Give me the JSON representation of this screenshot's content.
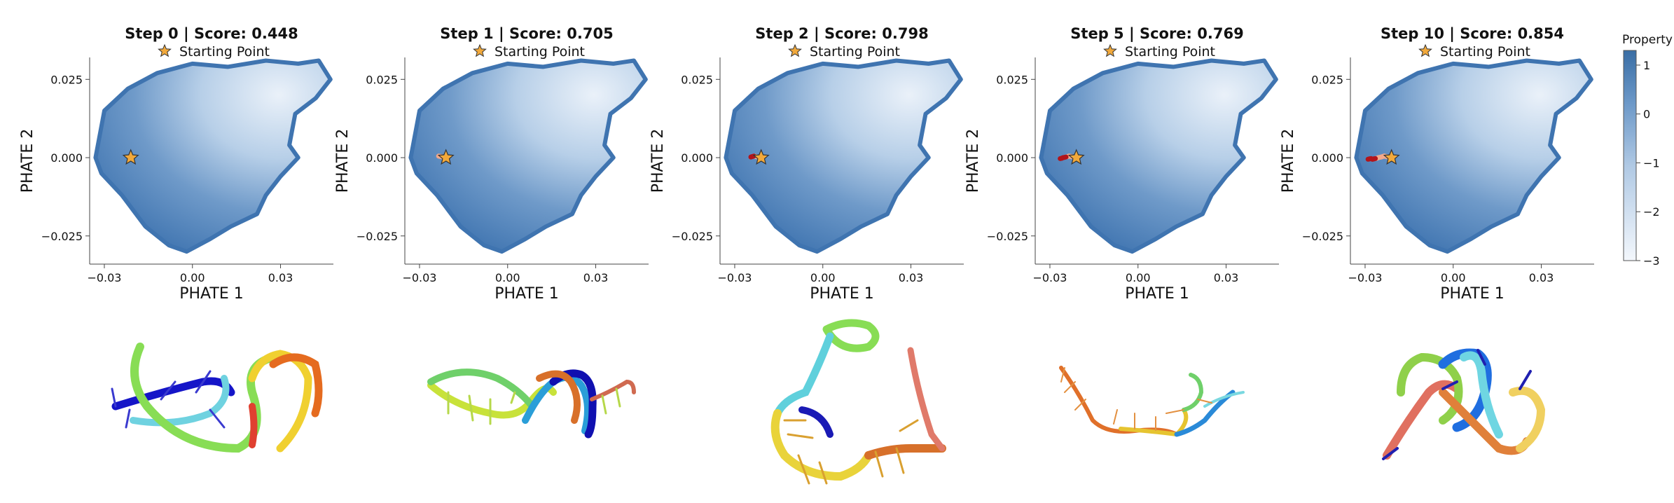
{
  "chart_data": [
    {
      "type": "scatter",
      "step": 0,
      "title": "Step 0 | Score: 0.448",
      "legend": "Starting Point",
      "xlabel": "PHATE 1",
      "ylabel": "PHATE 2",
      "xticks": [
        -0.03,
        0.0,
        0.03
      ],
      "xtick_labels": [
        "−0.03",
        "0.00",
        "0.03"
      ],
      "yticks": [
        0.025,
        0.0,
        -0.025
      ],
      "ytick_labels": [
        "0.025",
        "0.000",
        "−0.025"
      ],
      "xlim": [
        -0.035,
        0.048
      ],
      "ylim": [
        -0.034,
        0.032
      ],
      "start_point": [
        -0.021,
        0.0
      ],
      "trajectory": [
        [
          -0.021,
          0.0
        ]
      ]
    },
    {
      "type": "scatter",
      "step": 1,
      "title": "Step 1 | Score: 0.705",
      "legend": "Starting Point",
      "xlabel": "PHATE 1",
      "ylabel": "PHATE 2",
      "xticks": [
        -0.03,
        0.0,
        0.03
      ],
      "xtick_labels": [
        "−0.03",
        "0.00",
        "0.03"
      ],
      "yticks": [
        0.025,
        0.0,
        -0.025
      ],
      "ytick_labels": [
        "0.025",
        "0.000",
        "−0.025"
      ],
      "xlim": [
        -0.035,
        0.048
      ],
      "ylim": [
        -0.034,
        0.032
      ],
      "start_point": [
        -0.021,
        0.0
      ],
      "trajectory": [
        [
          -0.021,
          0.0
        ],
        [
          -0.0235,
          0.0005
        ]
      ]
    },
    {
      "type": "scatter",
      "step": 2,
      "title": "Step 2 | Score: 0.798",
      "legend": "Starting Point",
      "xlabel": "PHATE 1",
      "ylabel": "PHATE 2",
      "xticks": [
        -0.03,
        0.0,
        0.03
      ],
      "xtick_labels": [
        "−0.03",
        "0.00",
        "0.03"
      ],
      "yticks": [
        0.025,
        0.0,
        -0.025
      ],
      "ytick_labels": [
        "0.025",
        "0.000",
        "−0.025"
      ],
      "xlim": [
        -0.035,
        0.048
      ],
      "ylim": [
        -0.034,
        0.032
      ],
      "start_point": [
        -0.021,
        0.0
      ],
      "trajectory": [
        [
          -0.021,
          0.0
        ],
        [
          -0.0235,
          0.0005
        ],
        [
          -0.0245,
          0.0002
        ]
      ]
    },
    {
      "type": "scatter",
      "step": 5,
      "title": "Step 5 | Score: 0.769",
      "legend": "Starting Point",
      "xlabel": "PHATE 1",
      "ylabel": "PHATE 2",
      "xticks": [
        -0.03,
        0.0,
        0.03
      ],
      "xtick_labels": [
        "−0.03",
        "0.00",
        "0.03"
      ],
      "yticks": [
        0.025,
        0.0,
        -0.025
      ],
      "ytick_labels": [
        "0.025",
        "0.000",
        "−0.025"
      ],
      "xlim": [
        -0.035,
        0.048
      ],
      "ylim": [
        -0.034,
        0.032
      ],
      "start_point": [
        -0.021,
        0.0
      ],
      "trajectory": [
        [
          -0.021,
          0.0
        ],
        [
          -0.0235,
          0.0005
        ],
        [
          -0.0245,
          0.0002
        ],
        [
          -0.0255,
          0.0
        ],
        [
          -0.026,
          -0.0002
        ],
        [
          -0.0265,
          -0.0003
        ]
      ]
    },
    {
      "type": "scatter",
      "step": 10,
      "title": "Step 10 | Score: 0.854",
      "legend": "Starting Point",
      "xlabel": "PHATE 1",
      "ylabel": "PHATE 2",
      "xticks": [
        -0.03,
        0.0,
        0.03
      ],
      "xtick_labels": [
        "−0.03",
        "0.00",
        "0.03"
      ],
      "yticks": [
        0.025,
        0.0,
        -0.025
      ],
      "ytick_labels": [
        "0.025",
        "0.000",
        "−0.025"
      ],
      "xlim": [
        -0.035,
        0.048
      ],
      "ylim": [
        -0.034,
        0.032
      ],
      "start_point": [
        -0.021,
        0.0
      ],
      "trajectory": [
        [
          -0.021,
          0.0
        ],
        [
          -0.0235,
          0.0005
        ],
        [
          -0.0245,
          0.0002
        ],
        [
          -0.0255,
          0.0
        ],
        [
          -0.026,
          -0.0002
        ],
        [
          -0.0265,
          -0.0003
        ],
        [
          -0.027,
          -0.0004
        ],
        [
          -0.0275,
          -0.0005
        ],
        [
          -0.028,
          -0.0003
        ],
        [
          -0.0285,
          -0.0004
        ],
        [
          -0.029,
          -0.0005
        ]
      ]
    }
  ],
  "colorbar": {
    "label": "Property",
    "ticks": [
      1,
      0,
      -1,
      -2,
      -3
    ],
    "tick_labels": [
      "1",
      "0",
      "−1",
      "−2",
      "−3"
    ],
    "range": [
      -3,
      1.3
    ],
    "color_low": "#f3f7fc",
    "color_high": "#3a6ea5"
  },
  "colors": {
    "star_fill": "#f2a93b",
    "star_edge": "#333333",
    "trajectory_light": "#f4a98a",
    "trajectory_dark": "#b2141b",
    "density_high": "#3a6ea5",
    "density_low": "#eaf1f9"
  }
}
